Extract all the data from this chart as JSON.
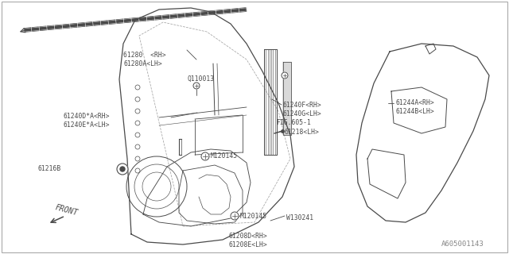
{
  "bg_color": "#ffffff",
  "line_color": "#4a4a4a",
  "text_color": "#4a4a4a",
  "title_ref": "A605001143",
  "fs": 5.8,
  "lw": 0.7,
  "parts_labels": {
    "p61280": "61280  <RH>\n61280A<LH>",
    "q110013": "Q110013",
    "p61240DE": "61240D*A<RH>\n61240E*A<LH>",
    "p61216b": "61216B",
    "p61240FG": "61240F<RH>\n61240G<LH>",
    "fig605": "FIG.605-1",
    "p61218": "61218<LH>",
    "m120145a": "M120145",
    "m120145b": "M120145",
    "m120145c": "M120145",
    "w130241": "W130241",
    "p61208DE": "61208D<RH>\n61208E<LH>",
    "p61244AB": "61244A<RH>\n61244B<LH>",
    "front": "FRONT"
  }
}
